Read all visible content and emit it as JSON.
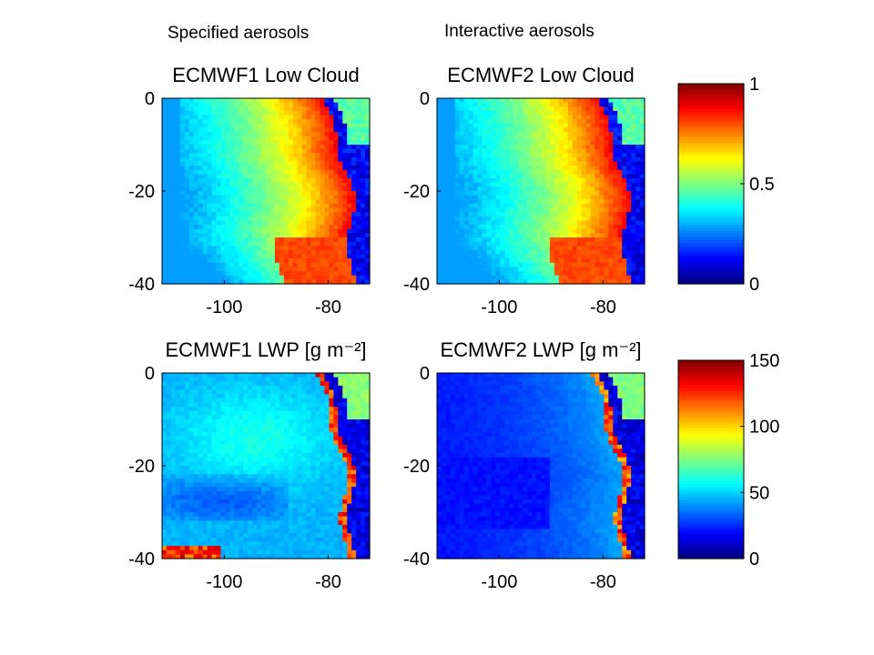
{
  "column_labels": {
    "left": "Specified aerosols",
    "right": "Interactive aerosols"
  },
  "chart_data": [
    {
      "type": "heatmap",
      "title": "ECMWF1 Low Cloud",
      "xticks": [
        -100,
        -80
      ],
      "yticks": [
        0,
        -20,
        -40
      ],
      "xlim": [
        -112,
        -72
      ],
      "ylim": [
        -40,
        0
      ],
      "colorbar": {
        "min": 0,
        "max": 1,
        "ticks": [
          "1",
          "0.5",
          "0"
        ]
      },
      "field": "low_cloud",
      "colormap": "jet",
      "grid": false
    },
    {
      "type": "heatmap",
      "title": "ECMWF2 Low Cloud",
      "xticks": [
        -100,
        -80
      ],
      "yticks": [
        0,
        -20,
        -40
      ],
      "xlim": [
        -112,
        -72
      ],
      "ylim": [
        -40,
        0
      ],
      "colorbar": {
        "min": 0,
        "max": 1,
        "ticks": [
          "1",
          "0.5",
          "0"
        ]
      },
      "field": "low_cloud",
      "colormap": "jet",
      "grid": false
    },
    {
      "type": "heatmap",
      "title": "ECMWF1 LWP [g m⁻²]",
      "xticks": [
        -100,
        -80
      ],
      "yticks": [
        0,
        -20,
        -40
      ],
      "xlim": [
        -112,
        -72
      ],
      "ylim": [
        -40,
        0
      ],
      "colorbar": {
        "min": 0,
        "max": 150,
        "ticks": [
          "150",
          "100",
          "50",
          "0"
        ]
      },
      "field": "lwp_specified",
      "colormap": "jet",
      "grid": false
    },
    {
      "type": "heatmap",
      "title": "ECMWF2 LWP [g m⁻²]",
      "xticks": [
        -100,
        -80
      ],
      "yticks": [
        0,
        -20,
        -40
      ],
      "xlim": [
        -112,
        -72
      ],
      "ylim": [
        -40,
        0
      ],
      "colorbar": {
        "min": 0,
        "max": 150,
        "ticks": [
          "150",
          "100",
          "50",
          "0"
        ]
      },
      "field": "lwp_interactive",
      "colormap": "jet",
      "grid": false
    }
  ]
}
